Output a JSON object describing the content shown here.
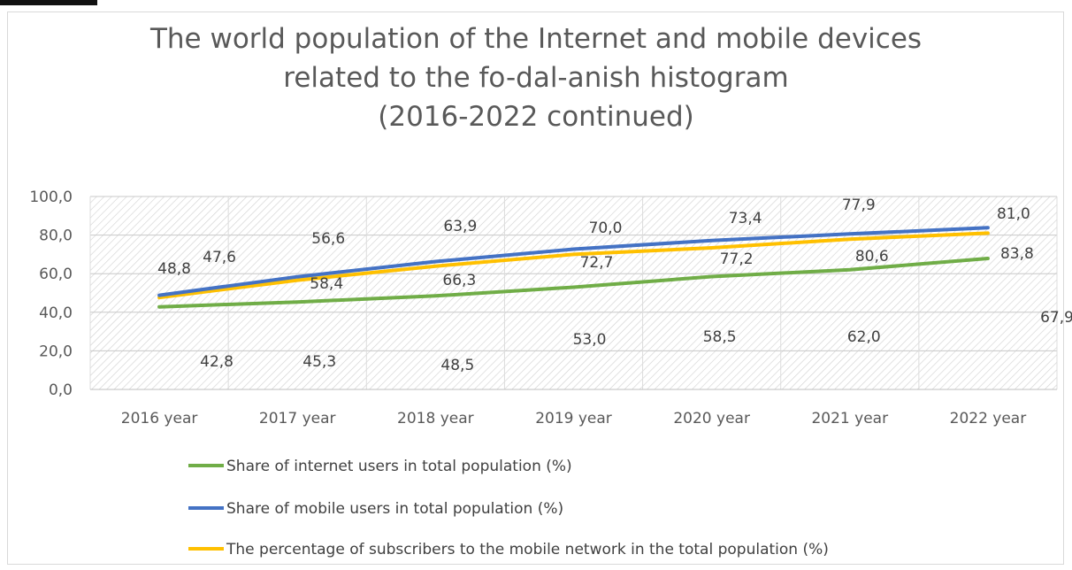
{
  "chart_data": {
    "type": "line",
    "title_lines": [
      "The world population of the Internet and mobile devices",
      "related to the fo-dal-anish histogram",
      "(2016-2022 continued)"
    ],
    "categories": [
      "2016 year",
      "2017 year",
      "2018 year",
      "2019 year",
      "2020 year",
      "2021 year",
      "2022 year"
    ],
    "y_ticks": [
      "0,0",
      "20,0",
      "40,0",
      "60,0",
      "80,0",
      "100,0"
    ],
    "ylim": [
      0,
      100
    ],
    "grid": "hatched plot area",
    "legend_position": "bottom",
    "series": [
      {
        "name": "Share of internet users in total population (%)",
        "color": "#70ad47",
        "values": [
          42.8,
          45.3,
          48.5,
          53.0,
          58.5,
          62.0,
          67.9
        ],
        "labels": [
          "42,8",
          "45,3",
          "48,5",
          "53,0",
          "58,5",
          "62,0",
          "67,9"
        ]
      },
      {
        "name": "Share of mobile users in total population (%)",
        "color": "#4472c4",
        "values": [
          48.8,
          58.4,
          66.3,
          72.7,
          77.2,
          80.6,
          83.8
        ],
        "labels": [
          "48,8",
          "58,4",
          "66,3",
          "72,7",
          "77,2",
          "80,6",
          "83,8"
        ]
      },
      {
        "name": " The percentage of subscribers to the mobile network in the total population (%)",
        "color": "#ffc000",
        "values": [
          47.6,
          56.6,
          63.9,
          70.0,
          73.4,
          77.9,
          81.0
        ],
        "labels": [
          "47,6",
          "56,6",
          "63,9",
          "70,0",
          "73,4",
          "77,9",
          "81,0"
        ]
      }
    ]
  }
}
